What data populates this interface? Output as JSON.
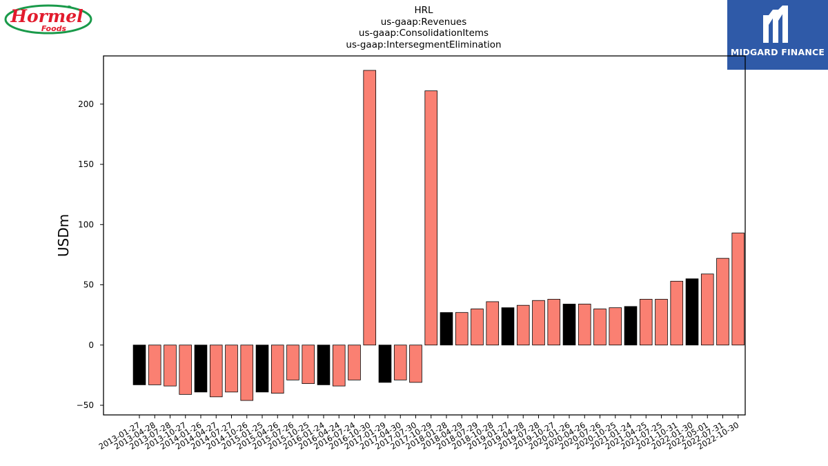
{
  "logos": {
    "left": {
      "text_main": "Hormel",
      "text_sub": "Foods"
    },
    "right": {
      "text": "MIDGARD FINANCE"
    }
  },
  "chart_data": {
    "type": "bar",
    "title_lines": [
      "HRL",
      "us-gaap:Revenues",
      "us-gaap:ConsolidationItems",
      "us-gaap:IntersegmentElimination"
    ],
    "xlabel": "",
    "ylabel": "USDm",
    "ylim": [
      -58,
      240
    ],
    "yticks": [
      -50,
      0,
      50,
      100,
      150,
      200
    ],
    "grid": false,
    "colors": {
      "fy_end": "#000000",
      "quarter": "#fa8072",
      "edge": "#000000"
    },
    "categories": [
      "2013-01-27",
      "2013-04-28",
      "2013-07-28",
      "2013-10-27",
      "2014-01-26",
      "2014-04-27",
      "2014-07-27",
      "2014-10-26",
      "2015-01-25",
      "2015-04-26",
      "2015-07-26",
      "2015-10-25",
      "2016-01-24",
      "2016-04-24",
      "2016-07-24",
      "2016-10-30",
      "2017-01-29",
      "2017-04-30",
      "2017-07-30",
      "2017-10-29",
      "2018-01-28",
      "2018-04-29",
      "2018-07-29",
      "2018-10-28",
      "2019-01-27",
      "2019-04-28",
      "2019-07-28",
      "2019-10-27",
      "2020-01-26",
      "2020-04-26",
      "2020-07-26",
      "2020-10-25",
      "2021-01-24",
      "2021-04-25",
      "2021-07-25",
      "2021-10-31",
      "2022-01-30",
      "2022-05-01",
      "2022-07-31",
      "2022-10-30"
    ],
    "values": [
      -33,
      -33,
      -34,
      -41,
      -39,
      -43,
      -39,
      -46,
      -39,
      -40,
      -29,
      -32,
      -33,
      -34,
      -29,
      228,
      -31,
      -29,
      -31,
      211,
      27,
      27,
      30,
      36,
      31,
      33,
      37,
      38,
      34,
      34,
      30,
      31,
      32,
      38,
      38,
      53,
      55,
      59,
      72,
      93
    ],
    "highlight": [
      true,
      false,
      false,
      false,
      true,
      false,
      false,
      false,
      true,
      false,
      false,
      false,
      true,
      false,
      false,
      false,
      true,
      false,
      false,
      false,
      true,
      false,
      false,
      false,
      true,
      false,
      false,
      false,
      true,
      false,
      false,
      false,
      true,
      false,
      false,
      false,
      true,
      false,
      false,
      false
    ]
  }
}
